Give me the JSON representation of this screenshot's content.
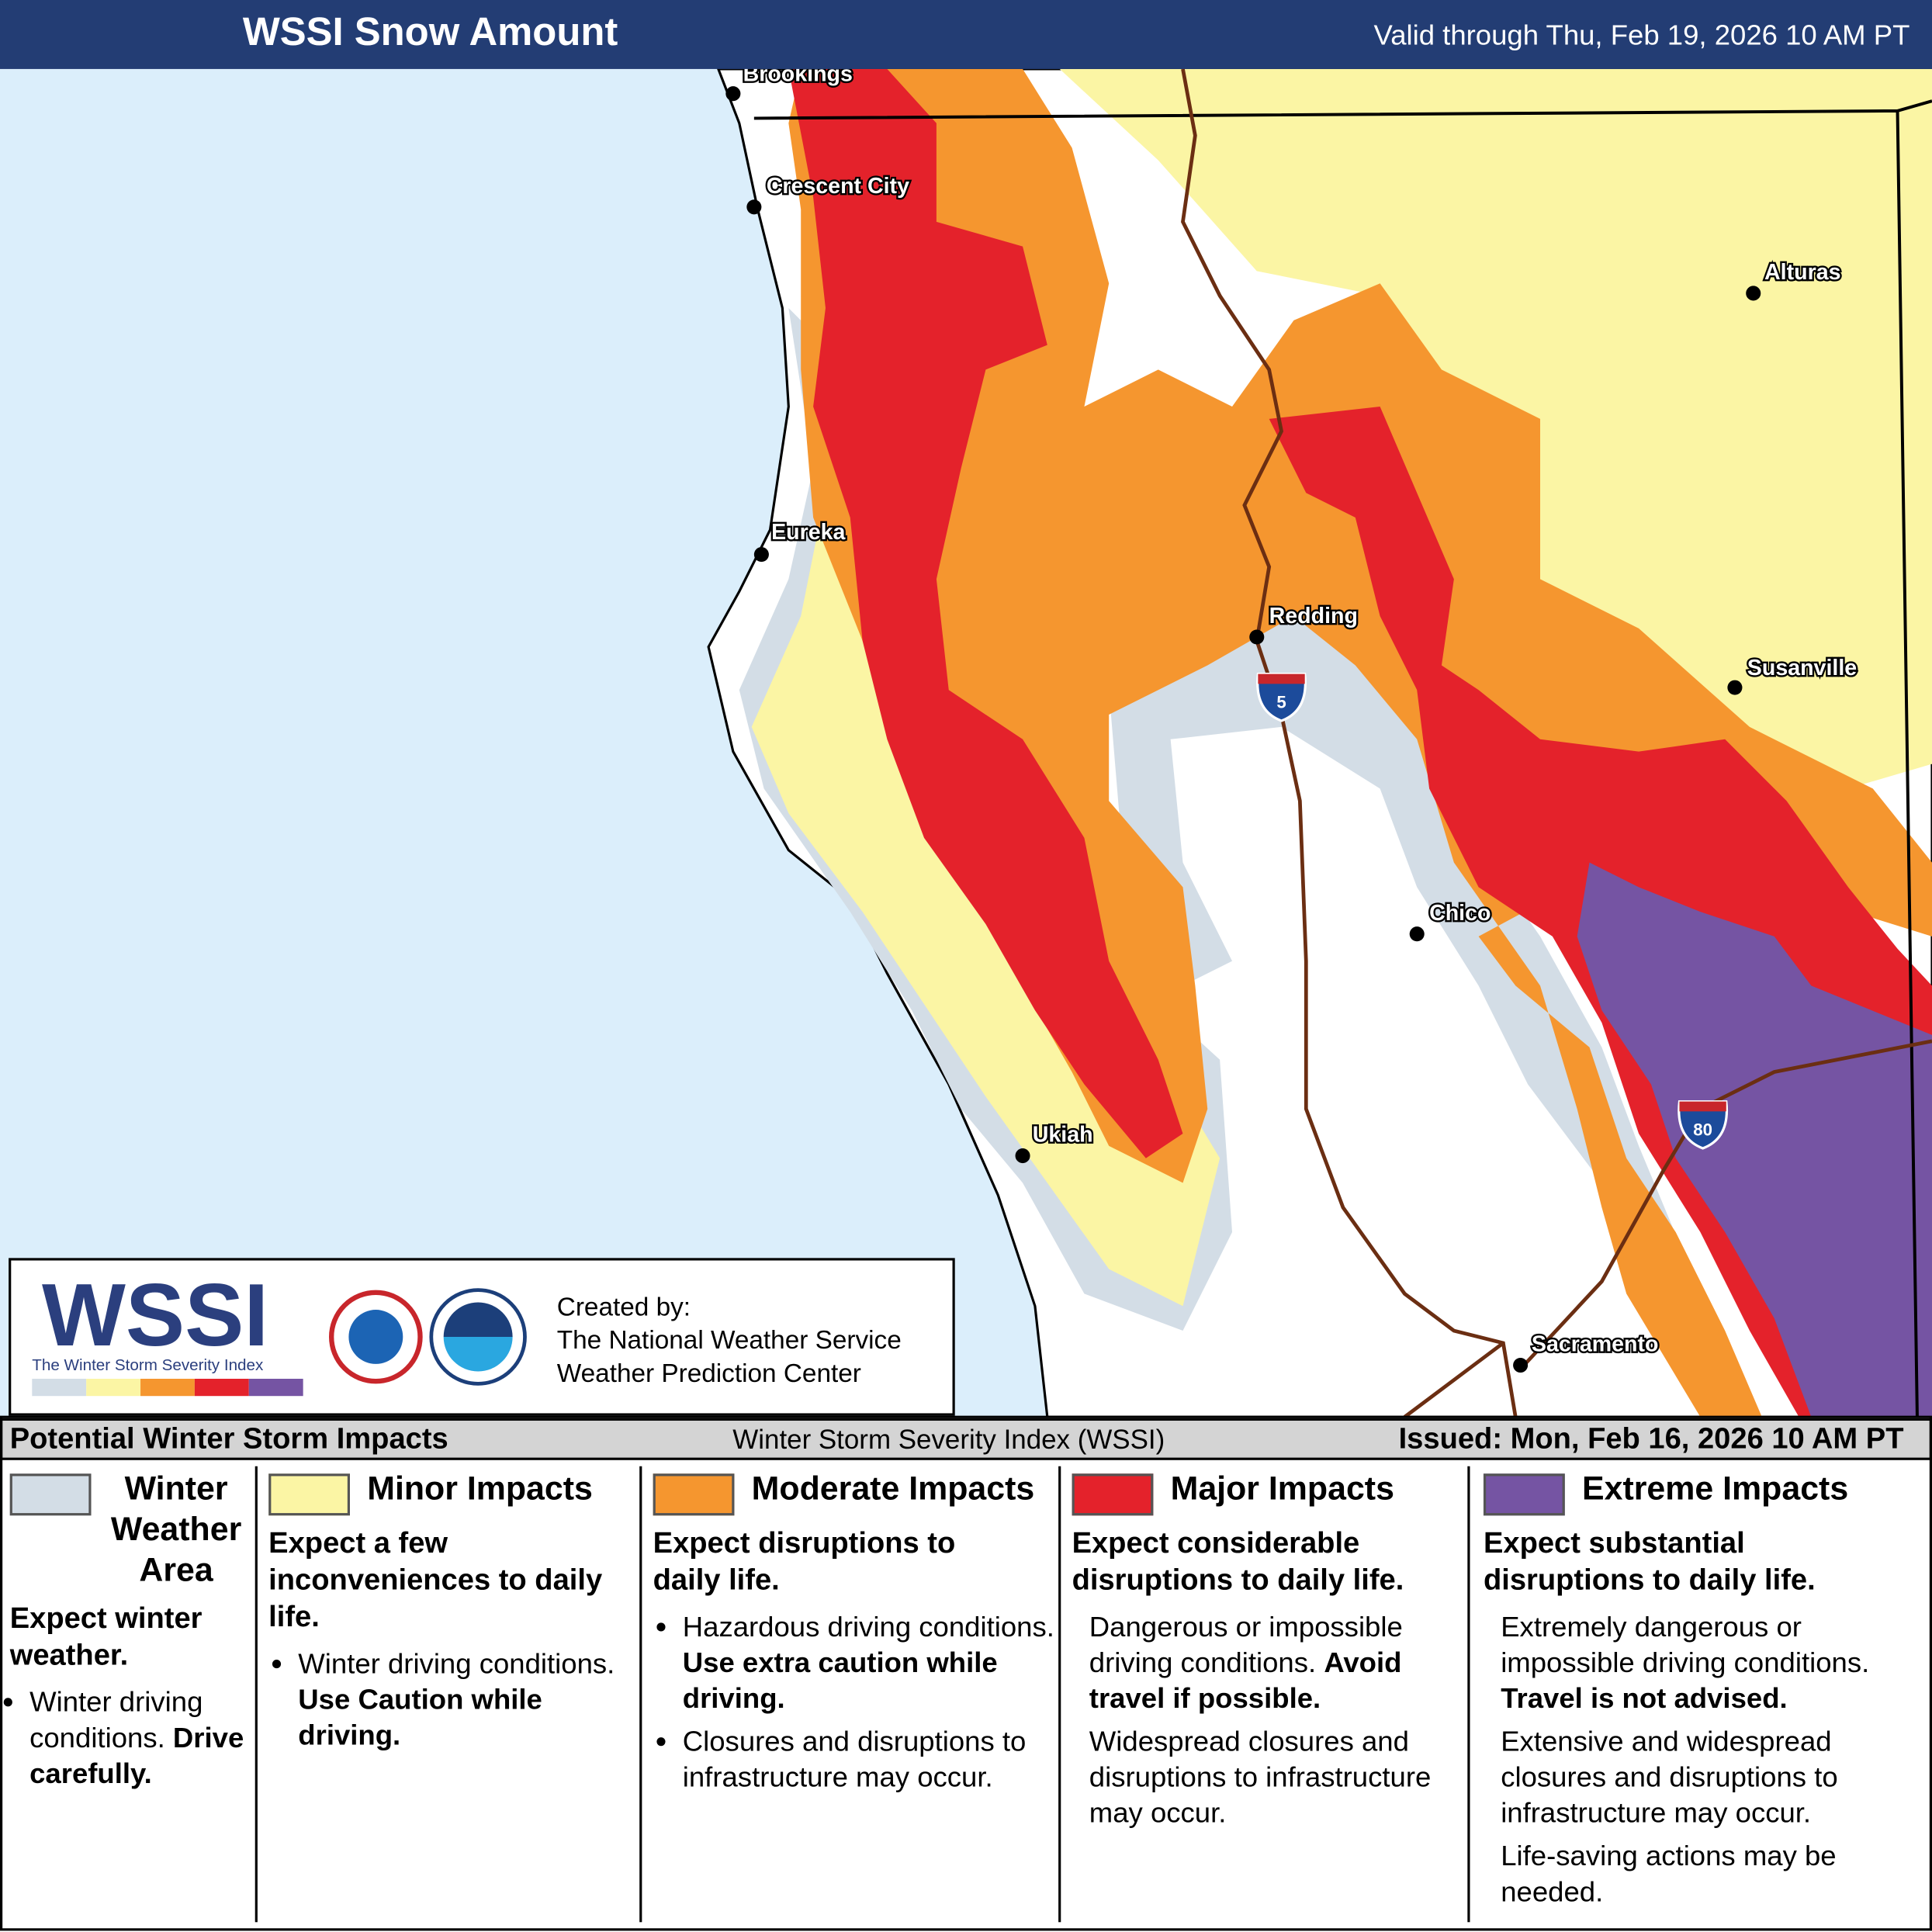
{
  "header": {
    "title": "WSSI Snow Amount",
    "valid": "Valid through Thu, Feb 19, 2026 10 AM PT"
  },
  "map": {
    "cities": [
      "Brookings",
      "Crescent City",
      "Alturas",
      "Eureka",
      "Redding",
      "Susanville",
      "Chico",
      "Ukiah",
      "Sacramento"
    ],
    "interstates": [
      "5",
      "80"
    ]
  },
  "logo": {
    "title": "WSSI",
    "subtitle": "The Winter Storm Severity Index",
    "credit": [
      "Created by:",
      "The National Weather Service",
      "Weather Prediction Center"
    ]
  },
  "legend": {
    "title": "Potential Winter Storm Impacts",
    "index": "Winter Storm Severity Index (WSSI)",
    "issued": "Issued: Mon, Feb 16, 2026 10 AM PT",
    "categories": [
      {
        "name": "Winter Weather Area",
        "color": "#d3dde6",
        "headline": "Expect winter weather.",
        "items": [
          {
            "text": "Winter driving conditions.",
            "bold": "Drive carefully."
          }
        ]
      },
      {
        "name": "Minor Impacts",
        "color": "#fbf5a4",
        "headline": "Expect a few inconveniences to daily life.",
        "items": [
          {
            "text": "Winter driving conditions.",
            "bold": "Use Caution while driving."
          }
        ]
      },
      {
        "name": "Moderate Impacts",
        "color": "#f5962f",
        "headline": "Expect disruptions to daily life.",
        "items": [
          {
            "text": "Hazardous driving conditions.",
            "bold": "Use extra caution while driving."
          },
          {
            "text": "Closures and disruptions to infrastructure may occur."
          }
        ]
      },
      {
        "name": "Major Impacts",
        "color": "#e4222b",
        "headline": "Expect considerable disruptions to daily life.",
        "items": [
          {
            "text": "Dangerous or impossible driving conditions.",
            "bold": "Avoid travel if possible."
          },
          {
            "text": "Widespread closures and disruptions to infrastructure may occur."
          }
        ]
      },
      {
        "name": "Extreme Impacts",
        "color": "#7554a3",
        "headline": "Expect substantial disruptions to daily life.",
        "items": [
          {
            "text": "Extremely dangerous or impossible driving conditions.",
            "bold": "Travel is not advised."
          },
          {
            "text": "Extensive and widespread closures and disruptions to infrastructure may occur."
          },
          {
            "text": "Life-saving actions may be needed."
          }
        ]
      }
    ]
  }
}
